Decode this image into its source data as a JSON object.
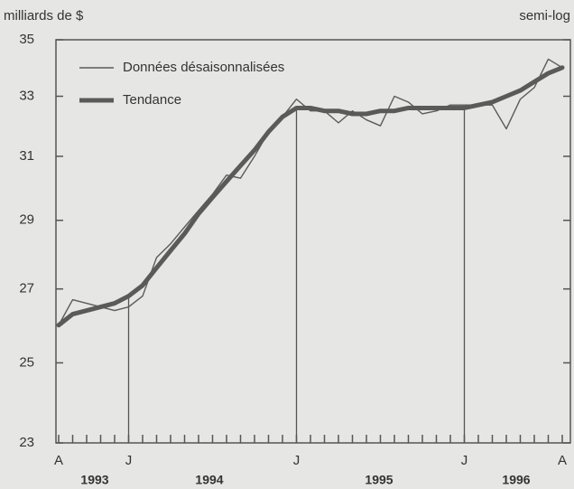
{
  "chart_data": {
    "type": "line",
    "y_axis_label": "milliards de $",
    "scale_note": "semi-log",
    "log_y": true,
    "categories": [
      "A",
      null,
      null,
      null,
      null,
      "J",
      null,
      null,
      null,
      null,
      null,
      null,
      null,
      null,
      null,
      null,
      null,
      "J",
      null,
      null,
      null,
      null,
      null,
      null,
      null,
      null,
      null,
      null,
      null,
      "J",
      null,
      null,
      null,
      null,
      null,
      null,
      "A"
    ],
    "year_labels": [
      "1993",
      "1994",
      "1995",
      "1996"
    ],
    "series": [
      {
        "name": "Données désaisonnalisées",
        "color": "#5a5a5a",
        "values": [
          26.0,
          26.7,
          26.6,
          26.5,
          26.4,
          26.5,
          26.8,
          27.9,
          28.3,
          28.8,
          29.3,
          29.8,
          30.4,
          30.3,
          31.0,
          31.8,
          32.3,
          32.9,
          32.5,
          32.5,
          32.1,
          32.5,
          32.2,
          32.0,
          33.0,
          32.8,
          32.4,
          32.5,
          32.7,
          32.7,
          32.7,
          32.7,
          31.9,
          32.9,
          33.3,
          34.3,
          34.0
        ]
      },
      {
        "name": "Tendance",
        "color": "#5a5a5a",
        "values": [
          26.0,
          26.3,
          26.4,
          26.5,
          26.6,
          26.8,
          27.1,
          27.6,
          28.1,
          28.6,
          29.2,
          29.7,
          30.2,
          30.7,
          31.2,
          31.8,
          32.3,
          32.6,
          32.6,
          32.5,
          32.5,
          32.4,
          32.4,
          32.5,
          32.5,
          32.6,
          32.6,
          32.6,
          32.6,
          32.6,
          32.7,
          32.8,
          33.0,
          33.2,
          33.5,
          33.8,
          34.0
        ]
      }
    ],
    "ylim": [
      23,
      35
    ],
    "yticks": [
      23,
      25,
      27,
      29,
      31,
      33,
      35
    ],
    "legend": "top-left"
  }
}
